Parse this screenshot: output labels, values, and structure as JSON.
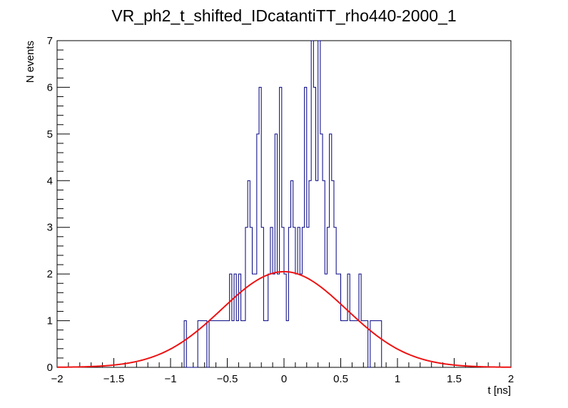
{
  "chart_data": {
    "type": "histogram",
    "title": "VR_ph2_t_shifted_IDcatantiTT_rho440-2000_1",
    "xlabel": "t [ns]",
    "ylabel": "N events",
    "xlim": [
      -2,
      2
    ],
    "ylim": [
      0,
      7
    ],
    "bin_width": 0.02,
    "x_ticks": [
      -2,
      -1.5,
      -1,
      -0.5,
      0,
      0.5,
      1,
      1.5,
      2
    ],
    "x_tick_labels": [
      "−2",
      "−1.5",
      "−1",
      "−0.5",
      "0",
      "0.5",
      "1",
      "1.5",
      "2"
    ],
    "y_ticks": [
      0,
      1,
      2,
      3,
      4,
      5,
      6,
      7
    ],
    "y_tick_labels": [
      "0",
      "1",
      "2",
      "3",
      "4",
      "5",
      "6",
      "7"
    ],
    "grid": false,
    "series": [
      {
        "kind": "histogram",
        "color": "#000080",
        "bins": [
          [
            -0.88,
            1
          ],
          [
            -0.76,
            1
          ],
          [
            -0.74,
            1
          ],
          [
            -0.72,
            1
          ],
          [
            -0.7,
            1
          ],
          [
            -0.66,
            1
          ],
          [
            -0.64,
            1
          ],
          [
            -0.62,
            1
          ],
          [
            -0.6,
            1
          ],
          [
            -0.58,
            1
          ],
          [
            -0.56,
            1
          ],
          [
            -0.54,
            1
          ],
          [
            -0.52,
            1
          ],
          [
            -0.5,
            1
          ],
          [
            -0.48,
            2
          ],
          [
            -0.46,
            1
          ],
          [
            -0.44,
            2
          ],
          [
            -0.42,
            1
          ],
          [
            -0.4,
            2
          ],
          [
            -0.38,
            1
          ],
          [
            -0.36,
            1
          ],
          [
            -0.34,
            3
          ],
          [
            -0.32,
            4
          ],
          [
            -0.3,
            3
          ],
          [
            -0.28,
            2
          ],
          [
            -0.26,
            2
          ],
          [
            -0.24,
            5
          ],
          [
            -0.22,
            6
          ],
          [
            -0.2,
            3
          ],
          [
            -0.18,
            1
          ],
          [
            -0.16,
            1
          ],
          [
            -0.14,
            2
          ],
          [
            -0.12,
            3
          ],
          [
            -0.1,
            2
          ],
          [
            -0.08,
            5
          ],
          [
            -0.06,
            2
          ],
          [
            -0.04,
            6
          ],
          [
            -0.02,
            3
          ],
          [
            0.0,
            2
          ],
          [
            0.02,
            1
          ],
          [
            0.04,
            3
          ],
          [
            0.06,
            4
          ],
          [
            0.08,
            3
          ],
          [
            0.1,
            2
          ],
          [
            0.12,
            3
          ],
          [
            0.14,
            2
          ],
          [
            0.16,
            3
          ],
          [
            0.18,
            6
          ],
          [
            0.2,
            3
          ],
          [
            0.22,
            4
          ],
          [
            0.24,
            7
          ],
          [
            0.26,
            6
          ],
          [
            0.28,
            4
          ],
          [
            0.3,
            7
          ],
          [
            0.32,
            5
          ],
          [
            0.34,
            4
          ],
          [
            0.36,
            2
          ],
          [
            0.38,
            3
          ],
          [
            0.4,
            5
          ],
          [
            0.42,
            4
          ],
          [
            0.44,
            3
          ],
          [
            0.46,
            2
          ],
          [
            0.48,
            2
          ],
          [
            0.5,
            1
          ],
          [
            0.52,
            1
          ],
          [
            0.54,
            1
          ],
          [
            0.56,
            2
          ],
          [
            0.58,
            1
          ],
          [
            0.6,
            1
          ],
          [
            0.62,
            1
          ],
          [
            0.64,
            1
          ],
          [
            0.66,
            2
          ],
          [
            0.68,
            1
          ],
          [
            0.7,
            1
          ],
          [
            0.72,
            1
          ],
          [
            0.76,
            1
          ],
          [
            0.78,
            1
          ],
          [
            0.8,
            1
          ],
          [
            0.82,
            1
          ],
          [
            0.84,
            1
          ]
        ]
      },
      {
        "kind": "fit-curve",
        "color": "#ee1111",
        "function": "gaussian",
        "amplitude": 2.05,
        "mean": 0.0,
        "sigma": 0.55
      }
    ]
  }
}
